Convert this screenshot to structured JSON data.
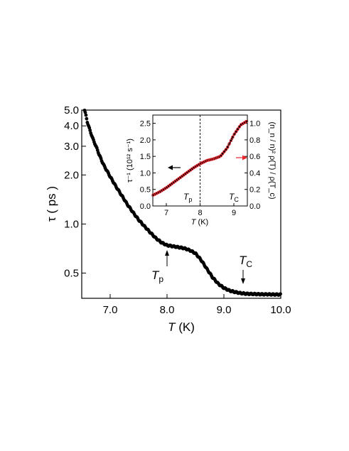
{
  "chart_data": [
    {
      "type": "scatter",
      "xlabel": "T (K)",
      "ylabel": "τ ( ps )",
      "xlim": [
        6.5,
        10.0
      ],
      "ylim": [
        0.35,
        5.0
      ],
      "yscale": "log",
      "x_ticks": [
        "7.0",
        "8.0",
        "9.0",
        "10.0"
      ],
      "y_ticks": [
        "5.0",
        "4.0",
        "3.0",
        "2.0",
        "1.0",
        "0.5"
      ],
      "grid": false,
      "marker_color": "#000000",
      "series": [
        {
          "x": [
            6.55,
            6.6,
            6.65,
            6.7,
            6.75,
            6.8,
            6.85,
            6.9,
            7.0,
            7.1,
            7.2,
            7.3,
            7.4,
            7.5,
            7.6,
            7.7,
            7.8,
            7.9,
            8.0,
            8.1,
            8.2,
            8.3,
            8.4,
            8.5,
            8.6,
            8.7,
            8.8,
            8.9,
            9.0,
            9.1,
            9.2,
            9.3,
            9.4,
            9.5,
            9.6,
            9.7,
            9.8,
            9.9,
            10.0
          ],
          "y": [
            5.0,
            4.2,
            3.7,
            3.3,
            3.0,
            2.7,
            2.45,
            2.25,
            1.95,
            1.7,
            1.5,
            1.32,
            1.18,
            1.06,
            0.97,
            0.89,
            0.82,
            0.77,
            0.74,
            0.73,
            0.72,
            0.71,
            0.69,
            0.66,
            0.6,
            0.53,
            0.47,
            0.43,
            0.405,
            0.39,
            0.382,
            0.376,
            0.373,
            0.372,
            0.371,
            0.37,
            0.37,
            0.369,
            0.369
          ]
        }
      ],
      "annotations": {
        "tp": {
          "label": "T",
          "sub": "p",
          "x": 8.0
        },
        "tc": {
          "label": "T",
          "sub": "C",
          "x": 9.35
        }
      }
    },
    {
      "type": "scatter",
      "xlabel": "T (K)",
      "ylabel_left": "τ⁻¹ (10¹² s⁻¹)",
      "ylabel_right": "(n_n / n)² ρ(T) / ρ(T_c)",
      "xlim": [
        6.6,
        9.4
      ],
      "ylim_left": [
        0.0,
        2.75
      ],
      "ylim_right": [
        0.0,
        1.1
      ],
      "x_ticks": [
        "7",
        "8",
        "9"
      ],
      "y_ticks_left": [
        "0.0",
        "0.5",
        "1.0",
        "1.5",
        "2.0",
        "2.5"
      ],
      "y_ticks_right": [
        "0.0",
        "0.2",
        "0.4",
        "0.6",
        "0.8",
        "1.0"
      ],
      "vline_x": 8.0,
      "series": [
        {
          "color": "#000000",
          "axis": "left",
          "x": [
            6.6,
            6.8,
            7.0,
            7.2,
            7.4,
            7.6,
            7.8,
            8.0,
            8.2,
            8.4,
            8.6,
            8.8,
            9.0,
            9.2,
            9.4
          ],
          "y": [
            0.32,
            0.43,
            0.55,
            0.7,
            0.85,
            1.0,
            1.15,
            1.28,
            1.37,
            1.42,
            1.5,
            1.75,
            2.15,
            2.45,
            2.57
          ]
        },
        {
          "color": "#e8262b",
          "axis": "right",
          "x": [
            6.6,
            6.8,
            7.0,
            7.2,
            7.4,
            7.6,
            7.8,
            8.0,
            8.2,
            8.4,
            8.6,
            8.8,
            9.0,
            9.2,
            9.4
          ],
          "y": [
            0.13,
            0.17,
            0.22,
            0.28,
            0.34,
            0.4,
            0.46,
            0.51,
            0.55,
            0.57,
            0.6,
            0.7,
            0.86,
            0.98,
            1.03
          ]
        }
      ],
      "annotations": {
        "tp": {
          "label": "T",
          "sub": "p"
        },
        "tc": {
          "label": "T",
          "sub": "C"
        }
      }
    }
  ],
  "text": {
    "main_xlabel_T": "T",
    "main_xlabel_unit": " (K)",
    "main_ylabel": "τ ( ps )",
    "inset_xlabel_T": "T",
    "inset_xlabel_unit": " (K)",
    "inset_ylabel": "τ⁻¹ (10¹² s⁻¹)",
    "inset_right_label": "(n_n / n)² ρ(T) / ρ(T_c)"
  }
}
